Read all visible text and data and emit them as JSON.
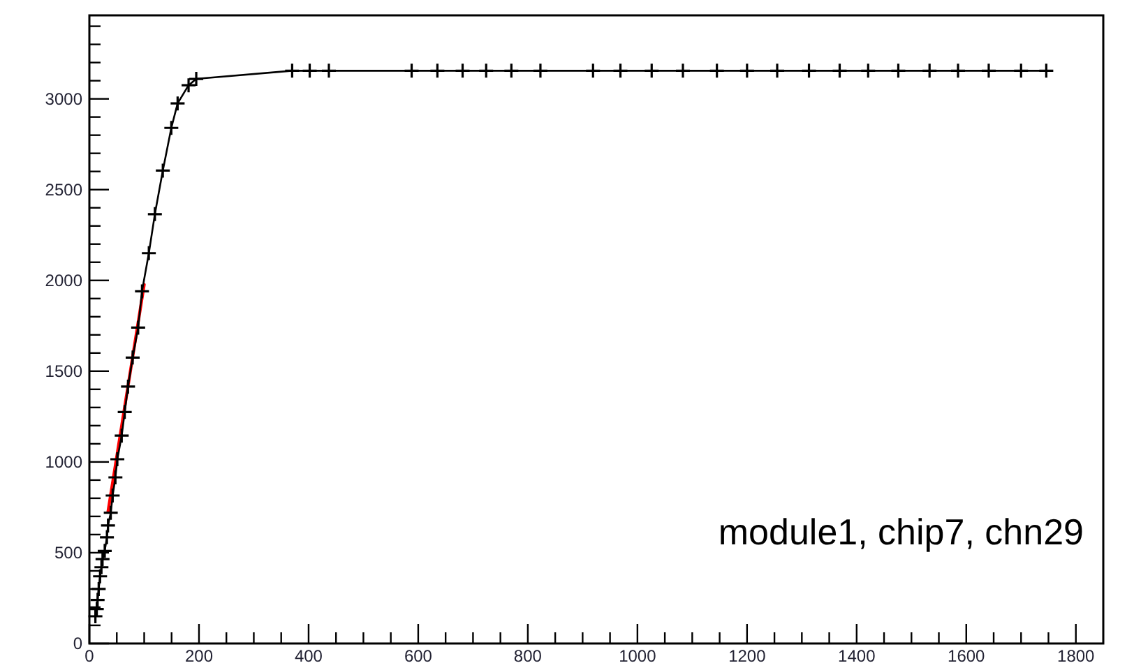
{
  "chart_data": {
    "type": "line",
    "xlim": [
      0,
      1850
    ],
    "ylim": [
      0,
      3460
    ],
    "xticks": [
      0,
      {
        "value": 50,
        "label": null
      },
      {
        "value": 100,
        "label": null
      },
      {
        "value": 150,
        "label": null
      },
      200,
      {
        "value": 250,
        "label": null
      },
      {
        "value": 300,
        "label": null
      },
      {
        "value": 350,
        "label": null
      },
      400,
      {
        "value": 450,
        "label": null
      },
      {
        "value": 500,
        "label": null
      },
      {
        "value": 550,
        "label": null
      },
      600,
      {
        "value": 650,
        "label": null
      },
      {
        "value": 700,
        "label": null
      },
      {
        "value": 750,
        "label": null
      },
      800,
      {
        "value": 850,
        "label": null
      },
      {
        "value": 900,
        "label": null
      },
      {
        "value": 950,
        "label": null
      },
      1000,
      {
        "value": 1050,
        "label": null
      },
      {
        "value": 1100,
        "label": null
      },
      {
        "value": 1150,
        "label": null
      },
      1200,
      {
        "value": 1250,
        "label": null
      },
      {
        "value": 1300,
        "label": null
      },
      {
        "value": 1350,
        "label": null
      },
      1400,
      {
        "value": 1450,
        "label": null
      },
      {
        "value": 1500,
        "label": null
      },
      {
        "value": 1550,
        "label": null
      },
      1600,
      {
        "value": 1650,
        "label": null
      },
      {
        "value": 1700,
        "label": null
      },
      {
        "value": 1750,
        "label": null
      },
      1800
    ],
    "yticks": [
      0,
      {
        "value": 100,
        "label": null
      },
      {
        "value": 200,
        "label": null
      },
      {
        "value": 300,
        "label": null
      },
      {
        "value": 400,
        "label": null
      },
      500,
      {
        "value": 600,
        "label": null
      },
      {
        "value": 700,
        "label": null
      },
      {
        "value": 800,
        "label": null
      },
      {
        "value": 900,
        "label": null
      },
      1000,
      {
        "value": 1100,
        "label": null
      },
      {
        "value": 1200,
        "label": null
      },
      {
        "value": 1300,
        "label": null
      },
      {
        "value": 1400,
        "label": null
      },
      1500,
      {
        "value": 1600,
        "label": null
      },
      {
        "value": 1700,
        "label": null
      },
      {
        "value": 1800,
        "label": null
      },
      {
        "value": 1900,
        "label": null
      },
      2000,
      {
        "value": 2100,
        "label": null
      },
      {
        "value": 2200,
        "label": null
      },
      {
        "value": 2300,
        "label": null
      },
      {
        "value": 2400,
        "label": null
      },
      2500,
      {
        "value": 2600,
        "label": null
      },
      {
        "value": 2700,
        "label": null
      },
      {
        "value": 2800,
        "label": null
      },
      {
        "value": 2900,
        "label": null
      },
      3000,
      {
        "value": 3100,
        "label": null
      },
      {
        "value": 3200,
        "label": null
      },
      {
        "value": 3300,
        "label": null
      },
      {
        "value": 3400,
        "label": null
      }
    ],
    "grid": false,
    "annotations": [
      "module1, chip7, chn29"
    ],
    "series": [
      {
        "color": "#000000",
        "marker": "cross",
        "x": [
          11,
          13.5,
          15,
          17,
          19.5,
          22,
          24,
          28,
          32,
          34,
          39,
          42.5,
          47.5,
          51,
          59,
          64.5,
          70.5,
          79,
          89,
          96,
          108.5,
          119.5,
          134,
          149.5,
          161,
          181,
          195,
          370,
          402,
          437,
          588,
          635,
          681,
          724,
          770,
          823,
          919,
          969,
          1026,
          1083,
          1145,
          1200,
          1255,
          1313,
          1369,
          1421,
          1476,
          1533,
          1585,
          1641,
          1700,
          1746
        ],
        "values": [
          150,
          190,
          240,
          300,
          370,
          420,
          465,
          510,
          585,
          650,
          720,
          815,
          915,
          1015,
          1145,
          1275,
          1415,
          1575,
          1740,
          1940,
          2150,
          2365,
          2605,
          2840,
          2975,
          3075,
          3110,
          3155,
          3155,
          3155,
          3155,
          3155,
          3155,
          3155,
          3155,
          3155,
          3155,
          3155,
          3155,
          3155,
          3155,
          3155,
          3155,
          3155,
          3155,
          3155,
          3155,
          3155,
          3155,
          3155,
          3155,
          3155
        ]
      },
      {
        "color": "#ff0000",
        "marker": "none",
        "x": [
          34,
          100
        ],
        "values": [
          726,
          1977
        ]
      }
    ]
  }
}
